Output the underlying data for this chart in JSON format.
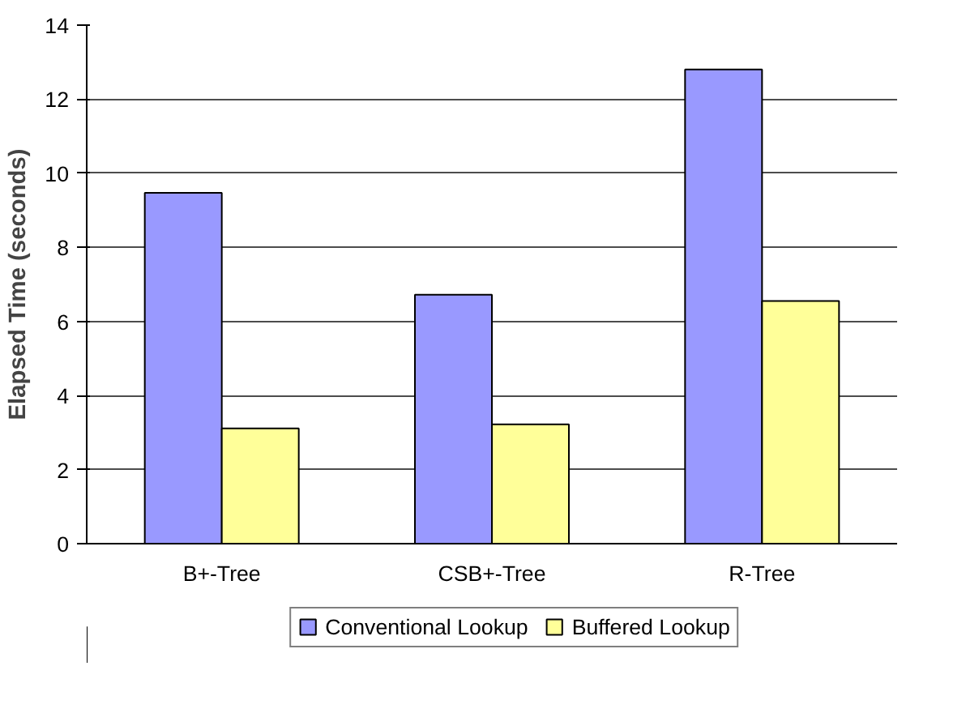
{
  "chart_data": {
    "type": "bar",
    "ylabel": "Elapsed Time (seconds)",
    "categories": [
      "B+-Tree",
      "CSB+-Tree",
      "R-Tree"
    ],
    "series": [
      {
        "name": "Conventional Lookup",
        "color": "#9999ff",
        "values": [
          9.47,
          6.72,
          12.8
        ]
      },
      {
        "name": "Buffered Lookup",
        "color": "#ffff99",
        "values": [
          3.11,
          3.22,
          6.55
        ]
      }
    ],
    "ylim": [
      0,
      14
    ],
    "yticks": [
      0,
      2,
      4,
      6,
      8,
      10,
      12,
      14
    ],
    "grid": "y",
    "legend": "bottom"
  }
}
